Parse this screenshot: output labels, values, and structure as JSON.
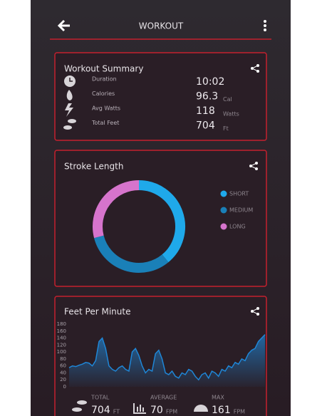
{
  "header": {
    "title": "WORKOUT"
  },
  "workout_summary": {
    "title": "Workout Summary",
    "rows": [
      {
        "label": "Duration",
        "value": "10:02"
      },
      {
        "label": "Calories",
        "value": "96.3",
        "unit": "Cal"
      },
      {
        "label": "Avg Watts",
        "value": "118",
        "unit": "Watts"
      },
      {
        "label": "Total Feet",
        "value": "704",
        "unit": "Ft"
      }
    ]
  },
  "stroke_length": {
    "chart_data": {
      "type": "donut",
      "title": "Stroke Length",
      "categories": [
        "SHORT",
        "MEDIUM",
        "LONG"
      ],
      "values": [
        39,
        32,
        29
      ],
      "colors": [
        "#1fa9ea",
        "#1a80b8",
        "#d674cc"
      ]
    }
  },
  "feet_per_minute": {
    "chart_data": {
      "type": "line",
      "title": "Feet Per Minute",
      "color": "#1f86d6",
      "values": [
        55,
        60,
        58,
        62,
        65,
        70,
        68,
        60,
        75,
        130,
        140,
        110,
        60,
        50,
        45,
        55,
        60,
        50,
        45,
        100,
        110,
        90,
        60,
        40,
        50,
        45,
        95,
        105,
        80,
        40,
        35,
        45,
        30,
        25,
        40,
        35,
        50,
        45,
        30,
        20,
        35,
        40,
        25,
        45,
        40,
        30,
        50,
        45,
        60,
        55,
        70,
        65,
        80,
        75,
        95,
        105,
        110,
        130,
        140,
        150
      ],
      "ylim": [
        0,
        180
      ],
      "yticks": [
        0,
        20,
        40,
        60,
        80,
        100,
        120,
        140,
        160,
        180
      ]
    },
    "stats": [
      {
        "label": "TOTAL",
        "value": "704",
        "unit": "FT"
      },
      {
        "label": "AVERAGE",
        "value": "70",
        "unit": "FPM"
      },
      {
        "label": "MAX",
        "value": "161",
        "unit": "FPM"
      }
    ]
  }
}
